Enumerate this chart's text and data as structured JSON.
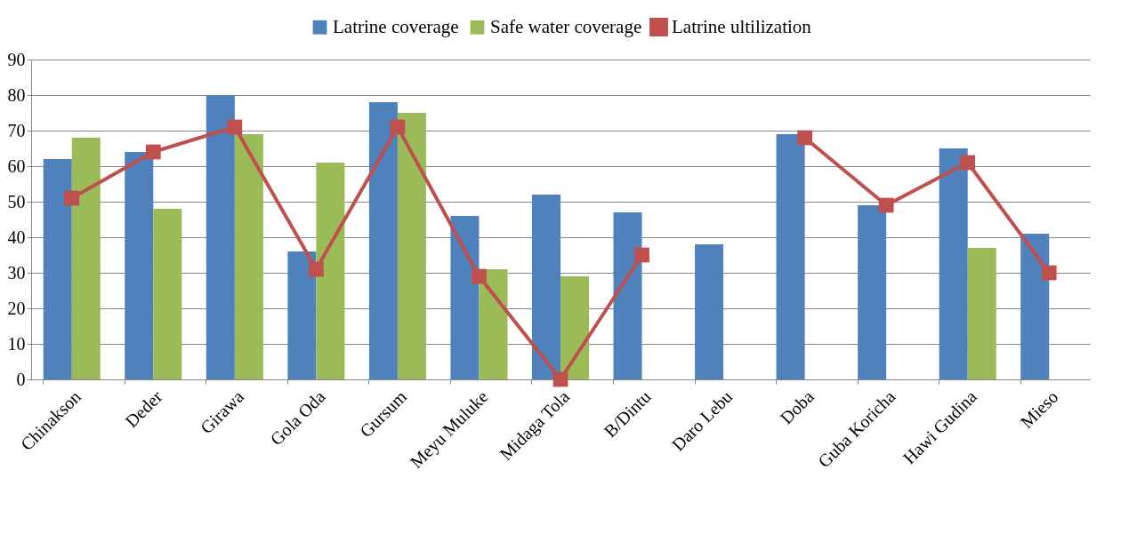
{
  "chart_data": {
    "type": "bar",
    "categories": [
      "Chinakson",
      "Deder",
      "Girawa",
      "Gola Oda",
      "Gursum",
      "Meyu Muluke",
      "Midaga Tola",
      "B/Dintu",
      "Daro Lebu",
      "Doba",
      "Guba Koricha",
      "Hawi Gudina",
      "Mieso"
    ],
    "series": [
      {
        "name": "Latrine coverage",
        "color": "#4f81bd",
        "values": [
          62,
          64,
          80,
          36,
          78,
          46,
          52,
          47,
          38,
          69,
          49,
          65,
          41
        ]
      },
      {
        "name": "Safe water coverage",
        "color": "#9bbb59",
        "values": [
          68,
          48,
          69,
          61,
          75,
          31,
          29,
          null,
          null,
          null,
          null,
          37,
          null
        ]
      },
      {
        "name": "Latrine ultilization",
        "type": "line",
        "color": "#c0504d",
        "marker": "square",
        "line_style": "solid",
        "values": [
          51,
          64,
          71,
          31,
          71,
          29,
          0,
          35,
          null,
          68,
          49,
          61,
          30
        ]
      }
    ],
    "ylim": [
      0,
      90
    ],
    "yticks": [
      0,
      10,
      20,
      30,
      40,
      50,
      60,
      70,
      80,
      90
    ],
    "grid": "y",
    "legend": "top"
  }
}
